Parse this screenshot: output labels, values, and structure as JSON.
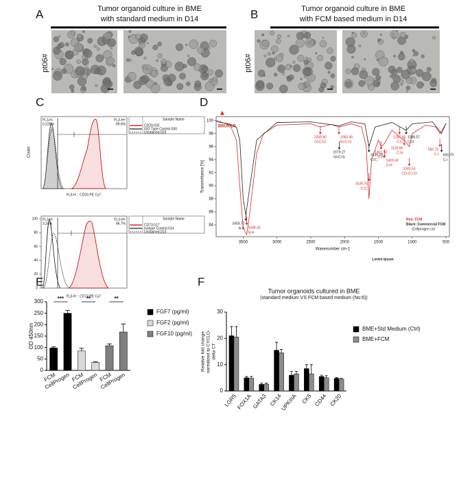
{
  "panels": {
    "A": {
      "label": "A",
      "title": [
        "Tumor organoid culture in BME",
        "with standard medium in D14"
      ],
      "sample": "pt06#"
    },
    "B": {
      "label": "B",
      "title": [
        "Tumor organoid culture in BME",
        "with FCM based medium in D14"
      ],
      "sample": "pt06#"
    },
    "C": {
      "label": "C",
      "y_label": "Count",
      "top": {
        "gate_neg": "FL3-H-",
        "neg_pct": "0.228%",
        "gate_pos": "FL3-H+",
        "pos_pct": "99.6%",
        "legend_header": "Sample Name",
        "samples": [
          "CD29.032",
          "ISO Type Control.030",
          "Unstained.029"
        ],
        "x_label": "FL3-H :: CD29 PE Cy7"
      },
      "bottom": {
        "gate_neg": "FL3-H-",
        "neg_pct": "3.24%",
        "gate_pos": "FL3-H+",
        "pos_pct": "96.7%",
        "legend_header": "Sample Name",
        "samples": [
          "CD73.017",
          "Isotype Control.014",
          "Unstained.013"
        ],
        "x_label": "FL3-H :: CD73 PE Cy7",
        "ylim": [
          0,
          104
        ],
        "yticks": [
          0,
          20,
          40,
          60,
          80,
          100
        ]
      }
    },
    "D": {
      "label": "D",
      "logo": "BRUKER"
    },
    "E": {
      "label": "E"
    },
    "F": {
      "label": "F"
    }
  },
  "chart_data": [
    {
      "type": "line",
      "y_label": "Transmittance [%]",
      "x_label": "Wavenumber cm-1",
      "note": "Lorem Ipsum",
      "legend_note": "(Cellprogen co)",
      "xlim": [
        3900,
        450
      ],
      "ylim": [
        82.2,
        100.6
      ],
      "xticks": [
        3500,
        3000,
        2500,
        2000,
        1500,
        1000,
        500
      ],
      "yticks": [
        84,
        86,
        88,
        90,
        92,
        94,
        96,
        98,
        100
      ],
      "series": [
        {
          "name": "Red: FCM",
          "color": "#d62728",
          "x": [
            3900,
            3700,
            3600,
            3550,
            3500,
            3448,
            3400,
            3300,
            3200,
            3000,
            2500,
            2358,
            2200,
            2083,
            1900,
            1750,
            1680,
            1640,
            1600,
            1500,
            1461,
            1409,
            1300,
            1188,
            1118,
            1043,
            1000,
            800,
            650,
            591,
            500
          ],
          "values": [
            99.8,
            99.5,
            97,
            90,
            83.5,
            82.5,
            86,
            95,
            98,
            99.3,
            99.5,
            99,
            99.4,
            99,
            99.5,
            99,
            96,
            88,
            94,
            97,
            96,
            96.5,
            98.5,
            97.5,
            97,
            96,
            98,
            99.3,
            99,
            98,
            99.5
          ]
        },
        {
          "name": "Black: Commercial FCM",
          "color": "#222222",
          "x": [
            3900,
            3600,
            3550,
            3500,
            3460,
            3400,
            3300,
            3000,
            2500,
            2079,
            1900,
            1700,
            1640,
            1550,
            1300,
            1088,
            1000,
            700,
            566,
            500
          ],
          "values": [
            100,
            99,
            97,
            88,
            85.5,
            90,
            97,
            99.7,
            99.8,
            99.2,
            99.8,
            99.5,
            96,
            99,
            99.7,
            98.5,
            99.5,
            99.8,
            98,
            99.6
          ]
        }
      ],
      "annotations": [
        {
          "label": "2358.80",
          "group": "O=C=O",
          "color": "#d62728"
        },
        {
          "label": "2083.48",
          "group": "N=C=S",
          "color": "#d62728"
        },
        {
          "label": "2079.27",
          "group": "N=C=S",
          "color": "#222222"
        },
        {
          "label": "1639.75",
          "group": "C=C",
          "color": "#d62728"
        },
        {
          "label": "1639.29",
          "group": "C=C",
          "color": "#222222"
        },
        {
          "label": "1461.50",
          "group": "C-H",
          "color": "#d62728"
        },
        {
          "label": "1409.43",
          "group": "O-H",
          "color": "#d62728"
        },
        {
          "label": "1187.93",
          "group": "C-O",
          "color": "#d62728"
        },
        {
          "label": "1118.68",
          "group": "C-N",
          "color": "#d62728"
        },
        {
          "label": "1088.57",
          "group": "C-O",
          "color": "#222222"
        },
        {
          "label": "1043.53",
          "group": "CO-O-CO",
          "color": "#d62728"
        },
        {
          "label": "590.75",
          "group": "C-I",
          "color": "#d62728"
        },
        {
          "label": "565.79",
          "group": "C-I",
          "color": "#222222"
        },
        {
          "label": "3459.72",
          "group": "N-H",
          "color": "#222222"
        },
        {
          "label": "3448.26",
          "group": "N-H",
          "color": "#d62728"
        }
      ]
    },
    {
      "type": "bar",
      "y_label": "OD 450nm",
      "categories": [
        "FCM",
        "CellProgen",
        "FCM",
        "CellProgen",
        "FCM",
        "CellProgen"
      ],
      "ylim": [
        0,
        300
      ],
      "yticks": [
        0,
        50,
        100,
        150,
        200,
        250,
        300
      ],
      "significance": [
        "***",
        "**",
        "**"
      ],
      "series": [
        {
          "name": "FGF7 (pg/ml)",
          "color": "#000000",
          "values": [
            98,
            250,
            null,
            null,
            null,
            null
          ],
          "errors": [
            5,
            12,
            null,
            null,
            null,
            null
          ]
        },
        {
          "name": "FGF2 (pg/ml)",
          "color": "#d9d9d9",
          "values": [
            null,
            null,
            85,
            35,
            null,
            null
          ],
          "errors": [
            null,
            null,
            12,
            3,
            null,
            null
          ]
        },
        {
          "name": "FGF10 (pg/ml)",
          "color": "#7f7f7f",
          "values": [
            null,
            null,
            null,
            null,
            108,
            168
          ],
          "errors": [
            null,
            null,
            null,
            null,
            8,
            35
          ]
        }
      ]
    },
    {
      "type": "bar",
      "title": "Tumor organoids cultured in BME",
      "subtitle": "(standard medium VS FCM based medium (No:6))",
      "y_label": [
        "Relative fold change",
        "normilized to CYCLO-",
        "delta CT"
      ],
      "categories": [
        "LGR5",
        "FOX1A",
        "GATA3",
        "CK14",
        "UPKIIIA",
        "CK5",
        "CD44",
        "CK20"
      ],
      "ylim": [
        0,
        30
      ],
      "yticks": [
        0,
        10,
        20,
        30
      ],
      "series": [
        {
          "name": "BME+Std Medium (Ctrl)",
          "color": "#000000",
          "values": [
            21,
            5,
            2.5,
            15.5,
            6,
            8.5,
            5.5,
            4.8
          ],
          "errors": [
            3.5,
            0.5,
            0.5,
            3,
            1.5,
            1.5,
            0.5,
            0.3
          ]
        },
        {
          "name": "BME+FCM",
          "color": "#8c8c8c",
          "values": [
            20.5,
            4.8,
            2.6,
            14.5,
            6.5,
            6.5,
            5,
            4.5
          ],
          "errors": [
            4,
            0.7,
            0.4,
            1.3,
            1,
            3.5,
            0.8,
            0.3
          ]
        }
      ]
    }
  ]
}
